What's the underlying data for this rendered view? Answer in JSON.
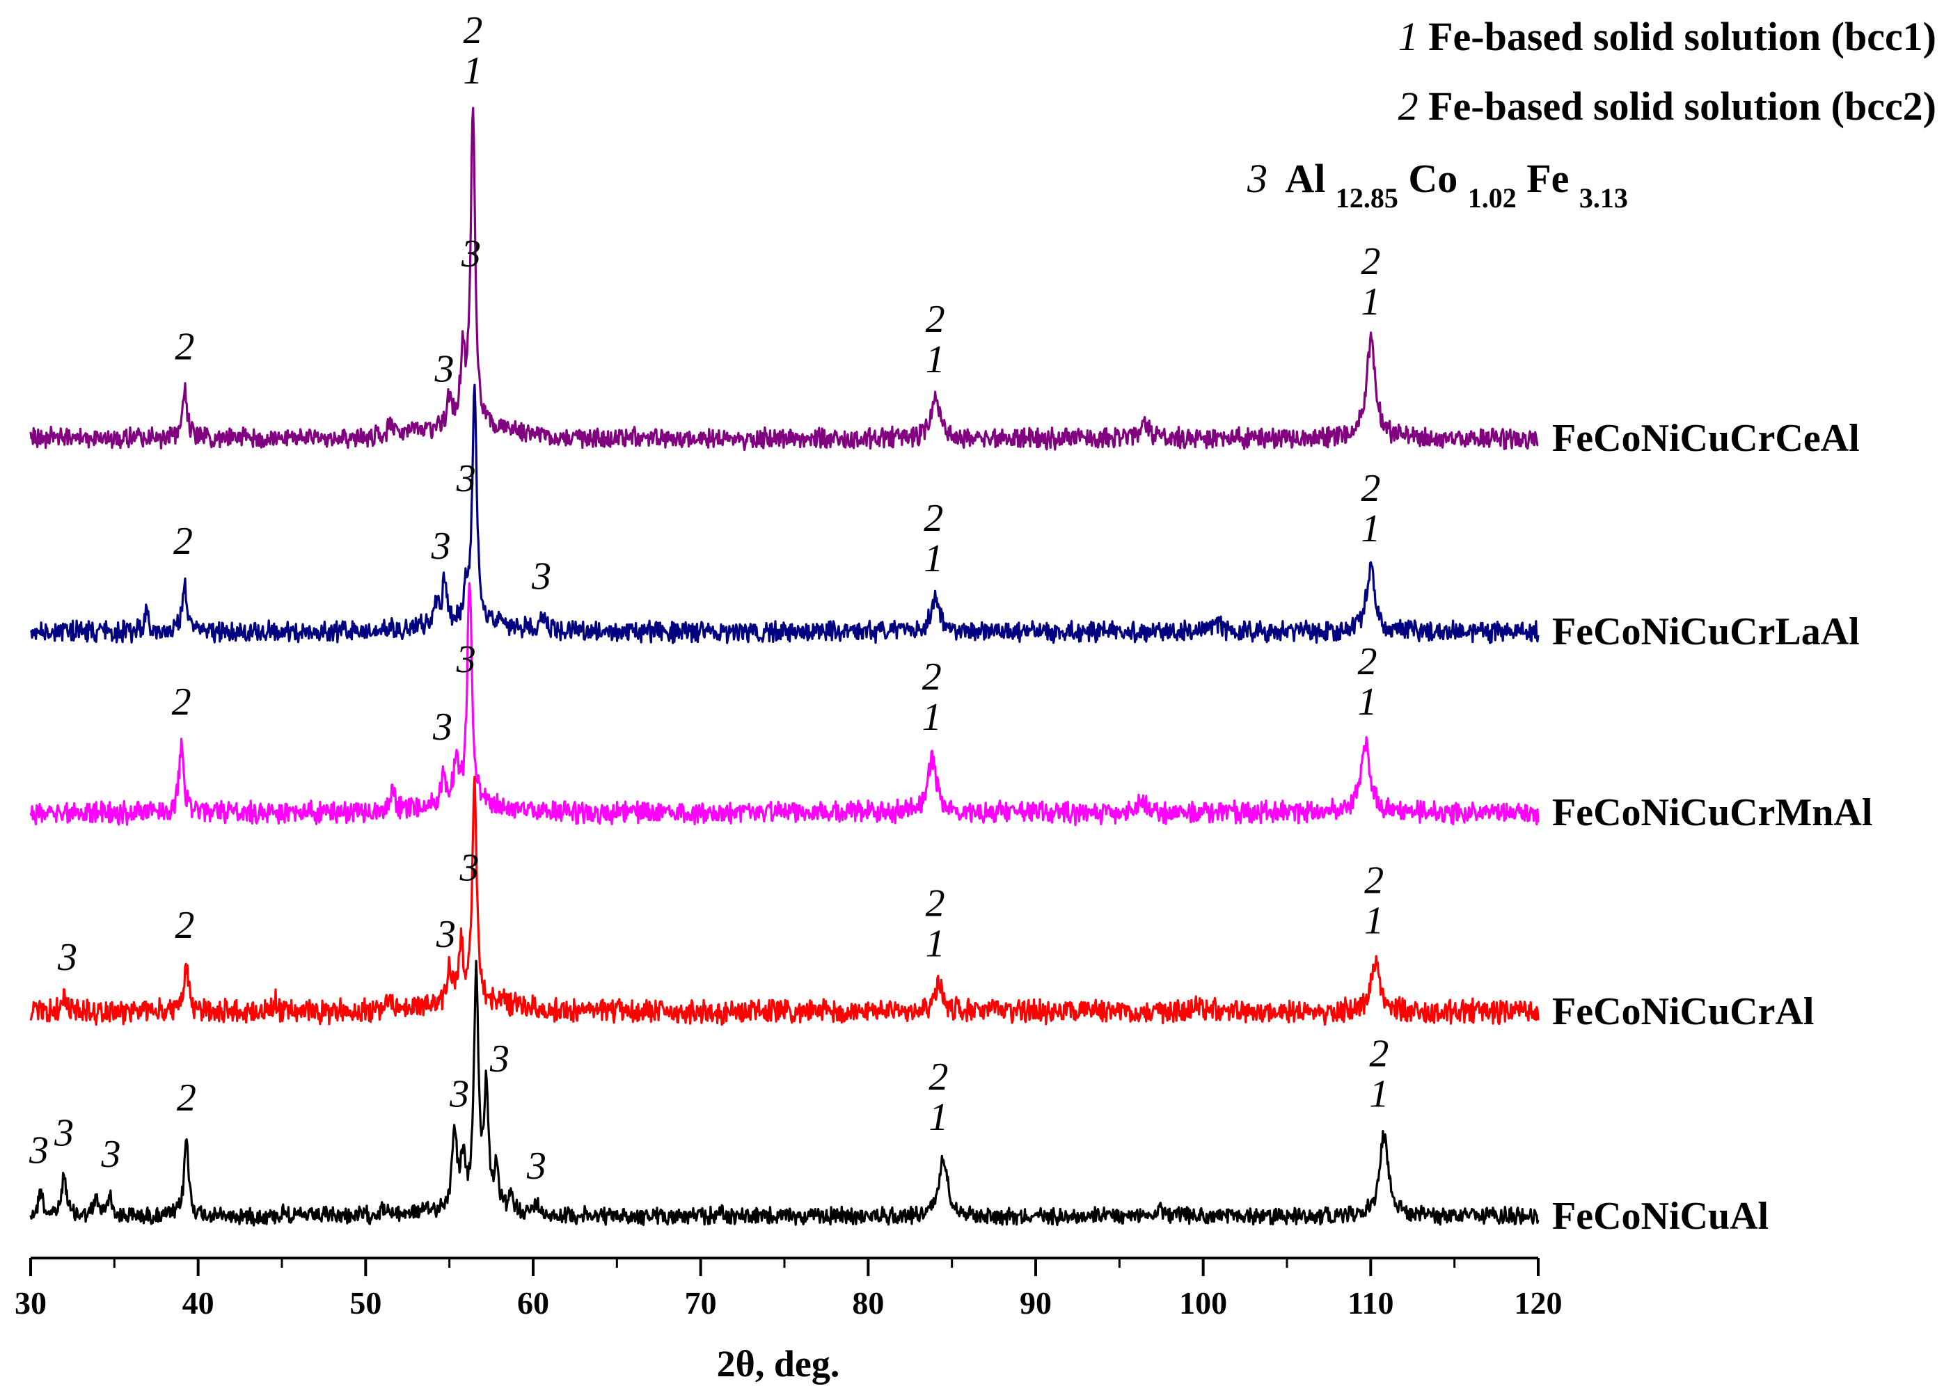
{
  "chart_data": {
    "type": "line",
    "title": "",
    "xlabel": "2θ, deg.",
    "ylabel": "",
    "xlim": [
      30,
      120
    ],
    "xticks": [
      30,
      40,
      50,
      60,
      70,
      80,
      90,
      100,
      110,
      120
    ],
    "legend": {
      "placement": "top-right",
      "entries": [
        {
          "num": "1",
          "text": "Fe-based solid solution (bcc1)"
        },
        {
          "num": "2",
          "text": "Fe-based solid solution (bcc2)"
        },
        {
          "num": "3",
          "text": "Al",
          "sub1": "12.85",
          "mid1": "Co",
          "sub2": "1.02",
          "mid2": "Fe",
          "sub3": "3.13"
        }
      ]
    },
    "series": [
      {
        "name": "FeCoNiCuAl",
        "color": "#000000",
        "peaks": [
          [
            30.6,
            0.13
          ],
          [
            32.0,
            0.22
          ],
          [
            33.9,
            0.09
          ],
          [
            34.7,
            0.11
          ],
          [
            39.3,
            0.4
          ],
          [
            45.2,
            0.03
          ],
          [
            51.0,
            0.04
          ],
          [
            55.3,
            0.42
          ],
          [
            55.8,
            0.24
          ],
          [
            56.6,
            1.2
          ],
          [
            57.2,
            0.6
          ],
          [
            57.8,
            0.18
          ],
          [
            58.7,
            0.07
          ],
          [
            60.2,
            0.05
          ],
          [
            71.2,
            0.03
          ],
          [
            84.5,
            0.3
          ],
          [
            97.4,
            0.04
          ],
          [
            110.8,
            0.42
          ]
        ],
        "annotations": [
          {
            "x": 30.5,
            "labels": [
              "3"
            ]
          },
          {
            "x": 32.0,
            "labels": [
              "3"
            ]
          },
          {
            "x": 34.8,
            "labels": [
              "3"
            ]
          },
          {
            "x": 39.3,
            "labels": [
              "2"
            ]
          },
          {
            "x": 55.6,
            "labels": [
              "3"
            ]
          },
          {
            "x": 58.0,
            "labels": [
              "3"
            ]
          },
          {
            "x": 60.2,
            "labels": [
              "3"
            ]
          },
          {
            "x": 84.2,
            "labels": [
              "2",
              "1"
            ]
          },
          {
            "x": 110.5,
            "labels": [
              "2",
              "1"
            ]
          }
        ]
      },
      {
        "name": "FeCoNiCuCrAl",
        "color": "#ff0000",
        "peaks": [
          [
            32.0,
            0.06
          ],
          [
            39.3,
            0.2
          ],
          [
            44.6,
            0.04
          ],
          [
            51.3,
            0.05
          ],
          [
            55.0,
            0.16
          ],
          [
            55.7,
            0.25
          ],
          [
            56.5,
            0.95
          ],
          [
            58.2,
            0.06
          ],
          [
            84.2,
            0.12
          ],
          [
            99.5,
            0.03
          ],
          [
            110.3,
            0.22
          ]
        ],
        "annotations": [
          {
            "x": 32.2,
            "labels": [
              "3"
            ]
          },
          {
            "x": 39.2,
            "labels": [
              "2"
            ]
          },
          {
            "x": 54.8,
            "labels": [
              "3"
            ]
          },
          {
            "x": 56.2,
            "labels": [
              "3"
            ]
          },
          {
            "x": 84.0,
            "labels": [
              "2",
              "1"
            ]
          },
          {
            "x": 110.2,
            "labels": [
              "2",
              "1"
            ]
          }
        ]
      },
      {
        "name": "FeCoNiCuCrMnAl",
        "color": "#ff00ff",
        "peaks": [
          [
            39.0,
            0.28
          ],
          [
            51.6,
            0.08
          ],
          [
            54.6,
            0.1
          ],
          [
            55.4,
            0.18
          ],
          [
            56.2,
            0.9
          ],
          [
            83.8,
            0.22
          ],
          [
            96.3,
            0.04
          ],
          [
            109.7,
            0.28
          ]
        ],
        "annotations": [
          {
            "x": 39.0,
            "labels": [
              "2"
            ]
          },
          {
            "x": 54.6,
            "labels": [
              "3"
            ]
          },
          {
            "x": 56.0,
            "labels": [
              "3"
            ]
          },
          {
            "x": 83.8,
            "labels": [
              "2",
              "1"
            ]
          },
          {
            "x": 109.8,
            "labels": [
              "2",
              "1"
            ]
          }
        ]
      },
      {
        "name": "FeCoNiCuCrLaAl",
        "color": "#000080",
        "peaks": [
          [
            36.9,
            0.07
          ],
          [
            39.2,
            0.2
          ],
          [
            54.2,
            0.08
          ],
          [
            54.7,
            0.18
          ],
          [
            56.0,
            0.1
          ],
          [
            56.5,
            0.95
          ],
          [
            60.6,
            0.06
          ],
          [
            84.0,
            0.13
          ],
          [
            100.9,
            0.04
          ],
          [
            110.0,
            0.25
          ]
        ],
        "annotations": [
          {
            "x": 39.1,
            "labels": [
              "2"
            ]
          },
          {
            "x": 54.5,
            "labels": [
              "3"
            ]
          },
          {
            "x": 56.0,
            "labels": [
              "3"
            ]
          },
          {
            "x": 60.5,
            "labels": [
              "3"
            ]
          },
          {
            "x": 83.9,
            "labels": [
              "2",
              "1"
            ]
          },
          {
            "x": 110.0,
            "labels": [
              "2",
              "1"
            ]
          }
        ]
      },
      {
        "name": "FeCoNiCuCrCeAl",
        "color": "#800080",
        "peaks": [
          [
            39.2,
            0.16
          ],
          [
            51.5,
            0.04
          ],
          [
            55.0,
            0.09
          ],
          [
            55.8,
            0.22
          ],
          [
            56.4,
            1.0
          ],
          [
            84.0,
            0.12
          ],
          [
            96.5,
            0.04
          ],
          [
            110.0,
            0.3
          ]
        ],
        "annotations": [
          {
            "x": 39.2,
            "labels": [
              "2"
            ]
          },
          {
            "x": 54.7,
            "labels": [
              "3"
            ]
          },
          {
            "x": 56.3,
            "labels": [
              "3"
            ]
          },
          {
            "x": 56.4,
            "labels": [
              "2",
              "1"
            ]
          },
          {
            "x": 84.0,
            "labels": [
              "2",
              "1"
            ]
          },
          {
            "x": 110.0,
            "labels": [
              "2",
              "1"
            ]
          }
        ]
      }
    ]
  }
}
